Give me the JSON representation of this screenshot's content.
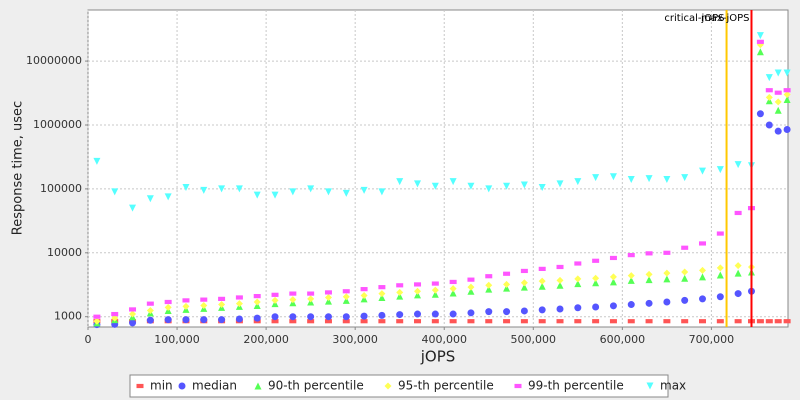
{
  "chart_data": {
    "type": "scatter",
    "x_label": "jOPS",
    "y_label": "Response time, usec",
    "log_y": true,
    "grid": true,
    "x": [
      10000,
      30000,
      50000,
      70000,
      90000,
      110000,
      130000,
      150000,
      170000,
      190000,
      210000,
      230000,
      250000,
      270000,
      290000,
      310000,
      330000,
      350000,
      370000,
      390000,
      410000,
      430000,
      450000,
      470000,
      490000,
      510000,
      530000,
      550000,
      570000,
      590000,
      610000,
      630000,
      650000,
      670000,
      690000,
      710000,
      730000,
      745000,
      755000,
      765000,
      775000,
      785000
    ],
    "series": [
      {
        "name": "min",
        "color": "#ff5555",
        "marker": "square",
        "values": [
          850,
          850,
          850,
          850,
          850,
          850,
          850,
          850,
          850,
          850,
          850,
          850,
          850,
          850,
          850,
          850,
          850,
          850,
          850,
          850,
          850,
          850,
          850,
          850,
          850,
          850,
          850,
          850,
          850,
          850,
          850,
          850,
          850,
          850,
          850,
          850,
          850,
          850,
          850,
          850,
          850,
          850
        ]
      },
      {
        "name": "median",
        "color": "#5555ff",
        "marker": "circle",
        "values": [
          750,
          760,
          800,
          880,
          900,
          900,
          900,
          900,
          920,
          950,
          1000,
          1000,
          1000,
          1000,
          1000,
          1020,
          1050,
          1080,
          1100,
          1100,
          1100,
          1150,
          1200,
          1200,
          1230,
          1280,
          1320,
          1380,
          1420,
          1480,
          1550,
          1620,
          1700,
          1800,
          1900,
          2050,
          2300,
          2500,
          1500000,
          1000000,
          800000,
          850000
        ]
      },
      {
        "name": "90-th percentile",
        "color": "#55ff55",
        "marker": "triangle",
        "values": [
          800,
          900,
          1000,
          1150,
          1250,
          1300,
          1350,
          1400,
          1450,
          1500,
          1600,
          1650,
          1700,
          1750,
          1800,
          1900,
          2000,
          2100,
          2200,
          2250,
          2350,
          2500,
          2700,
          2800,
          2900,
          3000,
          3100,
          3300,
          3400,
          3500,
          3700,
          3800,
          3900,
          4000,
          4200,
          4500,
          4800,
          5000,
          14000000,
          2400000,
          1700000,
          2500000
        ]
      },
      {
        "name": "95-th percentile",
        "color": "#ffff55",
        "marker": "diamond",
        "values": [
          850,
          950,
          1100,
          1250,
          1400,
          1450,
          1500,
          1550,
          1600,
          1700,
          1800,
          1850,
          1900,
          2000,
          2050,
          2150,
          2300,
          2400,
          2500,
          2600,
          2750,
          2900,
          3100,
          3200,
          3400,
          3600,
          3700,
          3900,
          4000,
          4200,
          4400,
          4600,
          4800,
          5000,
          5300,
          5800,
          6300,
          6000,
          18000000,
          2700000,
          2300000,
          3000000
        ]
      },
      {
        "name": "99-th percentile",
        "color": "#ff55ff",
        "marker": "square",
        "values": [
          1000,
          1100,
          1300,
          1600,
          1700,
          1800,
          1850,
          1900,
          2000,
          2100,
          2200,
          2300,
          2300,
          2400,
          2500,
          2700,
          2900,
          3100,
          3200,
          3300,
          3500,
          3800,
          4300,
          4700,
          5200,
          5600,
          6000,
          6800,
          7500,
          8300,
          9200,
          9800,
          10000,
          12000,
          14000,
          20000,
          42000,
          50000,
          20000000,
          3500000,
          3200000,
          3500000
        ]
      },
      {
        "name": "max",
        "color": "#55ffff",
        "marker": "triangle-down",
        "values": [
          270000,
          90000,
          50000,
          70000,
          75000,
          105000,
          95000,
          100000,
          100000,
          80000,
          80000,
          90000,
          100000,
          90000,
          85000,
          95000,
          90000,
          130000,
          120000,
          110000,
          130000,
          110000,
          100000,
          110000,
          115000,
          105000,
          120000,
          130000,
          150000,
          155000,
          140000,
          145000,
          140000,
          150000,
          190000,
          200000,
          240000,
          230000,
          25000000,
          5500000,
          6500000,
          6500000
        ]
      }
    ],
    "markers": [
      {
        "label": "critical-jOPS",
        "value": 717000,
        "color": "#ffc800"
      },
      {
        "label": "max-jOPS",
        "value": 745000,
        "color": "#ff0000"
      }
    ],
    "xlim": [
      0,
      786000
    ],
    "ylim": [
      690,
      63000000
    ],
    "xticks": [
      {
        "value": 0,
        "label": "0"
      },
      {
        "value": 100000,
        "label": "100,000"
      },
      {
        "value": 200000,
        "label": "200,000"
      },
      {
        "value": 300000,
        "label": "300,000"
      },
      {
        "value": 400000,
        "label": "400,000"
      },
      {
        "value": 500000,
        "label": "500,000"
      },
      {
        "value": 600000,
        "label": "600,000"
      },
      {
        "value": 700000,
        "label": "700,000"
      }
    ],
    "yticks": [
      1000,
      10000,
      100000,
      1000000,
      10000000
    ]
  }
}
